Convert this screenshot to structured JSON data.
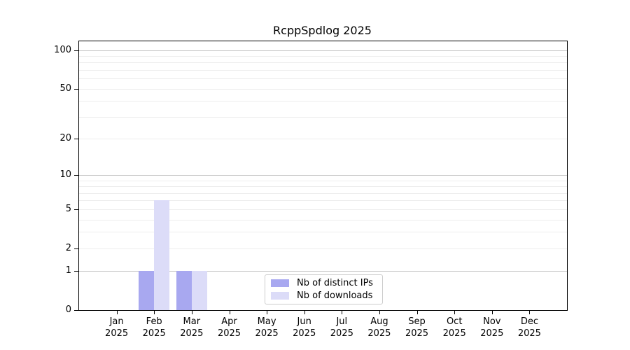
{
  "chart_data": {
    "type": "bar",
    "title": "RcppSpdlog 2025",
    "categories": [
      "Jan",
      "Feb",
      "Mar",
      "Apr",
      "May",
      "Jun",
      "Jul",
      "Aug",
      "Sep",
      "Oct",
      "Nov",
      "Dec"
    ],
    "category_sublabel": "2025",
    "series": [
      {
        "name": "Nb of distinct IPs",
        "color": "#a8a8f0",
        "values": [
          0,
          1,
          1,
          0,
          0,
          0,
          0,
          0,
          0,
          0,
          0,
          0
        ]
      },
      {
        "name": "Nb of downloads",
        "color": "#dcdcf8",
        "values": [
          0,
          6,
          1,
          0,
          0,
          0,
          0,
          0,
          0,
          0,
          0,
          0
        ]
      }
    ],
    "y_axis": {
      "scale": "log1p",
      "tick_labels": [
        0,
        1,
        2,
        5,
        10,
        20,
        50,
        100
      ],
      "max": 117,
      "major_gridlines": [
        1,
        10,
        100
      ],
      "minor_gridlines": [
        2,
        3,
        4,
        5,
        6,
        7,
        8,
        9,
        20,
        30,
        40,
        50,
        60,
        70,
        80,
        90
      ]
    },
    "x_axis": {
      "label_lines": 2
    },
    "legend": {
      "position": "lower center"
    },
    "colors": {
      "axis": "#000000",
      "major_grid": "#c6c6c6",
      "minor_grid": "#ededed",
      "background": "#ffffff"
    }
  }
}
